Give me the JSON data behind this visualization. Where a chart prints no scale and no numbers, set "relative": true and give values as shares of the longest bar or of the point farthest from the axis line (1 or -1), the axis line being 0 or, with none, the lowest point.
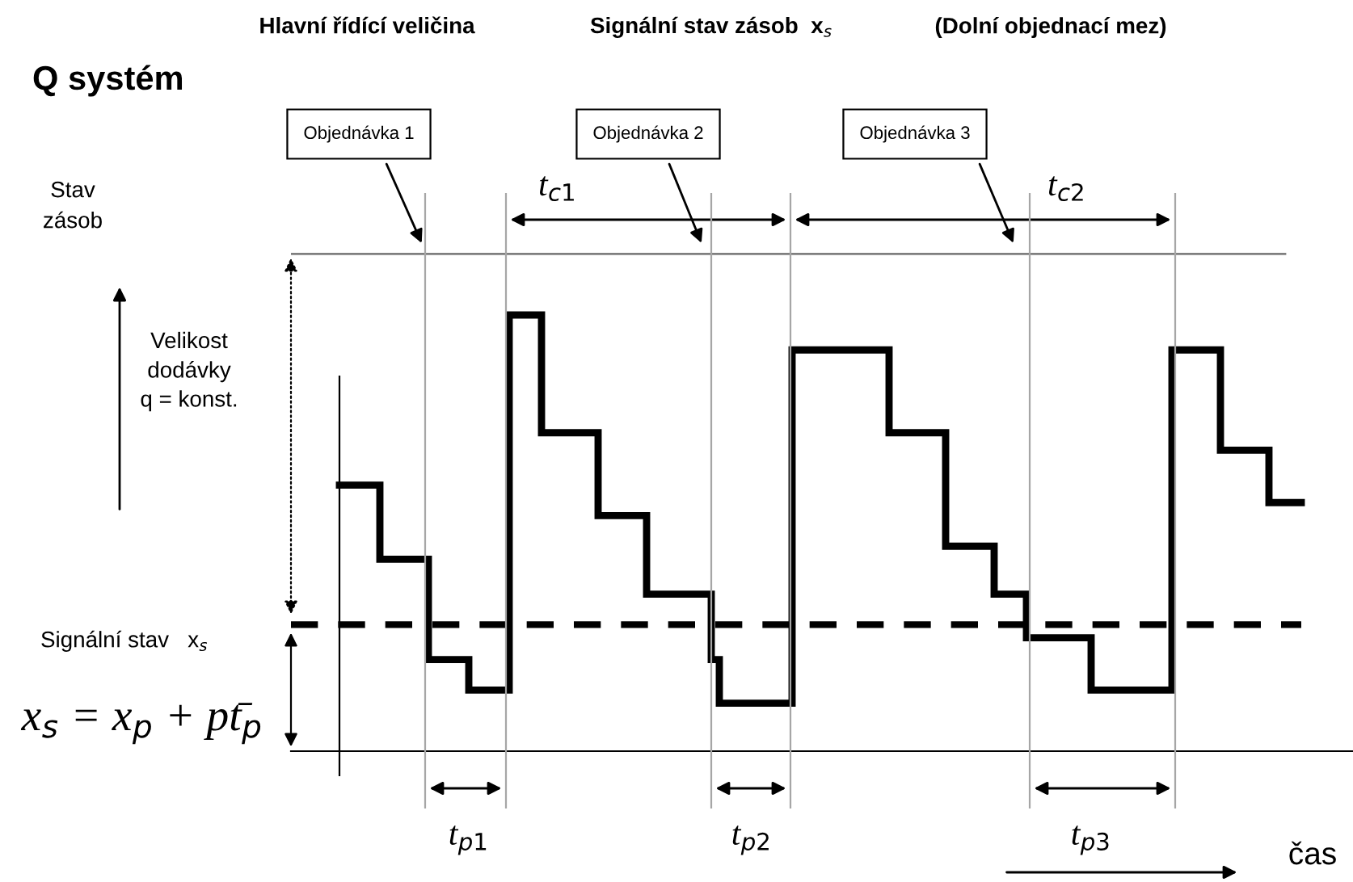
{
  "chart_data": {
    "type": "step",
    "relative": true,
    "title": "Q systém",
    "categories": [
      null,
      null,
      null,
      null,
      null,
      null,
      null,
      null,
      null,
      null,
      null,
      null,
      null,
      null,
      null,
      null,
      null,
      null,
      null,
      null,
      null,
      null,
      null,
      null,
      null,
      null,
      null,
      null,
      null,
      null,
      null,
      null,
      null,
      null,
      null,
      null,
      null,
      null,
      null,
      null,
      null,
      null,
      null,
      null,
      null,
      null,
      null,
      null,
      null,
      null,
      null,
      null,
      null,
      null,
      null,
      null,
      null,
      null,
      null,
      null,
      null,
      null,
      null,
      null,
      null,
      null,
      null,
      null,
      null,
      null,
      null,
      null,
      null,
      null,
      null,
      null,
      null,
      null,
      null,
      null,
      null,
      null,
      null,
      null,
      null,
      null,
      null,
      null,
      null,
      null,
      null,
      null,
      null,
      null,
      null,
      null,
      null,
      null,
      null,
      null,
      null,
      null,
      null,
      null,
      null,
      null,
      null,
      null,
      null,
      null,
      null,
      null,
      null,
      null,
      null,
      null,
      null,
      null,
      null,
      null
    ],
    "series": [
      {
        "color": "#000000",
        "line_style": "solid",
        "values": [
          0.61,
          0.61,
          0.61,
          0.61,
          0.61,
          0.44,
          0.44,
          0.44,
          0.44,
          0.44,
          0.44,
          0.21,
          0.21,
          0.21,
          0.21,
          0.21,
          0.14,
          0.14,
          0.14,
          0.14,
          0.14,
          1.0,
          1.0,
          1.0,
          1.0,
          0.73,
          0.73,
          0.73,
          0.73,
          0.73,
          0.73,
          0.73,
          0.54,
          0.54,
          0.54,
          0.54,
          0.54,
          0.54,
          0.36,
          0.36,
          0.36,
          0.36,
          0.36,
          0.36,
          0.36,
          0.36,
          0.21,
          0.11,
          0.11,
          0.11,
          0.11,
          0.11,
          0.11,
          0.11,
          0.11,
          0.11,
          0.92,
          0.92,
          0.92,
          0.92,
          0.92,
          0.92,
          0.92,
          0.92,
          0.92,
          0.92,
          0.92,
          0.92,
          0.73,
          0.73,
          0.73,
          0.73,
          0.73,
          0.73,
          0.73,
          0.47,
          0.47,
          0.47,
          0.47,
          0.47,
          0.47,
          0.36,
          0.36,
          0.36,
          0.36,
          0.26,
          0.26,
          0.26,
          0.26,
          0.26,
          0.26,
          0.26,
          0.26,
          0.14,
          0.14,
          0.14,
          0.14,
          0.14,
          0.14,
          0.14,
          0.14,
          0.14,
          0.14,
          0.92,
          0.92,
          0.92,
          0.92,
          0.92,
          0.92,
          0.69,
          0.69,
          0.69,
          0.69,
          0.69,
          0.69,
          0.57,
          0.57,
          0.57,
          0.57,
          0.57
        ]
      }
    ],
    "ref_lines": [
      {
        "axis": "y",
        "value": 0.29,
        "label": "Signální stav   x$_{s}$",
        "color": "#000000",
        "line_style": "dashed"
      },
      {
        "axis": "y",
        "value": 1.14,
        "label": null,
        "color": "#7f7f7f",
        "line_style": "solid"
      }
    ],
    "annotations": [
      "Hlavní řídící veličina",
      "Signální stav zásob  x$_{s}$",
      "(Dolní objednací mez)",
      "Objednávka 1",
      "Objednávka 2",
      "Objednávka 3",
      "t$_{c1}$",
      "t$_{c2}$",
      "Velikost\ndodávky\nq = konst.",
      "x$_{s}$ = x$_{p}$ + pt̄$_{p}$",
      "t$_{p1}$",
      "t$_{p2}$",
      "t$_{p3}$",
      "Stav\nzásob",
      "čas"
    ],
    "marker": "none"
  }
}
